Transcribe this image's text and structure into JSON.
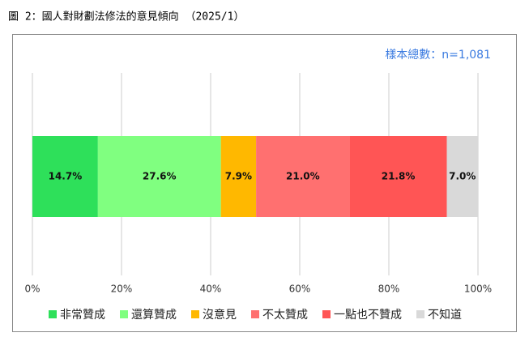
{
  "chart_data": {
    "type": "stacked-bar",
    "orientation": "horizontal",
    "title": "圖 2：國人對財劃法修法的意見傾向 （2025/1）",
    "annotation": "樣本總數：n=1,081",
    "series": [
      {
        "name": "非常贊成",
        "color": "#2ee05a",
        "values": [
          14.7
        ],
        "value_labels": [
          "14.7%"
        ]
      },
      {
        "name": "還算贊成",
        "color": "#80ff80",
        "values": [
          27.6
        ],
        "value_labels": [
          "27.6%"
        ]
      },
      {
        "name": "沒意見",
        "color": "#ffb800",
        "values": [
          7.9
        ],
        "value_labels": [
          "7.9%"
        ]
      },
      {
        "name": "不太贊成",
        "color": "#ff7070",
        "values": [
          21.0
        ],
        "value_labels": [
          "21.0%"
        ]
      },
      {
        "name": "一點也不贊成",
        "color": "#ff5555",
        "values": [
          21.8
        ],
        "value_labels": [
          "21.8%"
        ]
      },
      {
        "name": "不知道",
        "color": "#d9d9d9",
        "values": [
          7.0
        ],
        "value_labels": [
          "7.0%"
        ]
      }
    ],
    "xlim": [
      0,
      100
    ],
    "xticks": [
      {
        "value": 0,
        "label": "0%"
      },
      {
        "value": 20,
        "label": "20%"
      },
      {
        "value": 40,
        "label": "40%"
      },
      {
        "value": 60,
        "label": "60%"
      },
      {
        "value": 80,
        "label": "80%"
      },
      {
        "value": 100,
        "label": "100%"
      }
    ],
    "grid": true,
    "legend": "bottom"
  }
}
